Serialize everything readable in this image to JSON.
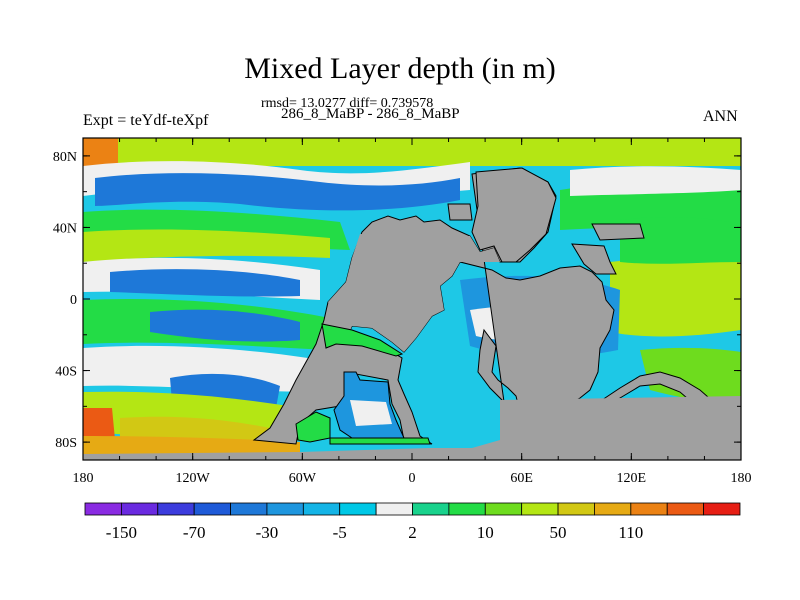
{
  "header": {
    "title": "Mixed Layer depth (in m)",
    "stats": "rmsd= 13.0277 diff= 0.739578",
    "period": "286_8_MaBP - 286_8_MaBP",
    "expt": "Expt = teYdf-teXpf",
    "season": "ANN"
  },
  "axes": {
    "lat_labels": [
      "80N",
      "40N",
      "0",
      "40S",
      "80S"
    ],
    "lat_values": [
      80,
      40,
      0,
      -40,
      -80
    ],
    "lon_labels": [
      "180",
      "120W",
      "60W",
      "0",
      "60E",
      "120E",
      "180"
    ],
    "lon_values": [
      -180,
      -120,
      -60,
      0,
      60,
      120,
      180
    ],
    "lon_range": [
      -180,
      180
    ],
    "lat_range": [
      -90,
      90
    ]
  },
  "colorbar": {
    "colors": [
      "#8a2be2",
      "#6a2ae0",
      "#3c3cdd",
      "#1e5ad8",
      "#1e78d8",
      "#1e96de",
      "#14b4e6",
      "#00c8e6",
      "#f0f0f0",
      "#19d28c",
      "#23dc46",
      "#6edc1e",
      "#b4e614",
      "#d2c814",
      "#e6aa14",
      "#eb8214",
      "#eb5a14",
      "#e61e14"
    ],
    "labels": [
      "-150",
      "-70",
      "-30",
      "-5",
      "2",
      "10",
      "50",
      "110"
    ],
    "label_bins": [
      1,
      3,
      5,
      7,
      9,
      11,
      13,
      15
    ]
  },
  "map": {
    "land_color": "#a0a0a0",
    "ocean_base_color": "#1ec8e6"
  }
}
